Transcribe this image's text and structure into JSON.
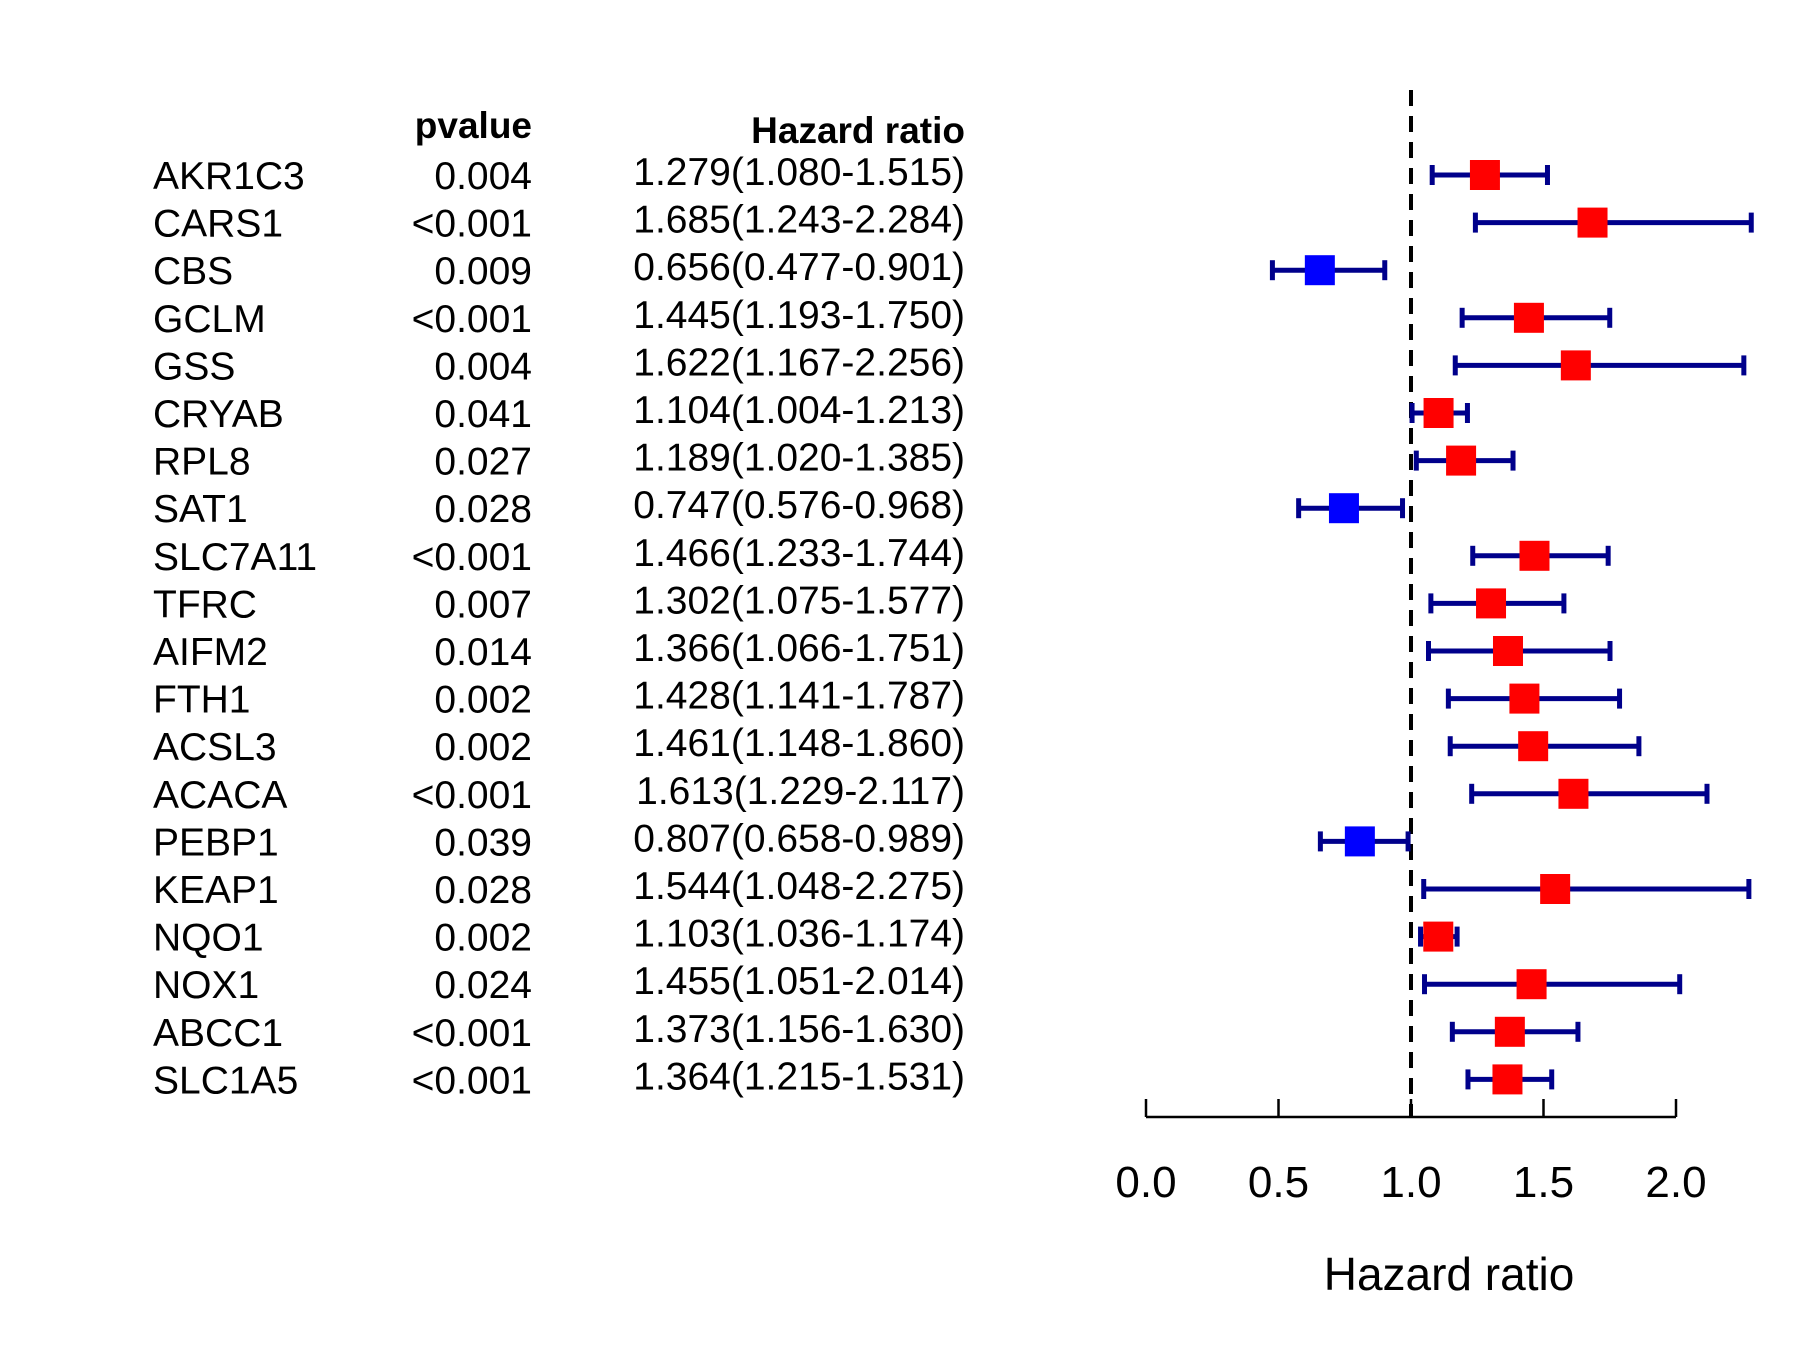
{
  "chart_data": {
    "type": "forest",
    "columns": {
      "gene": "",
      "pvalue": "pvalue",
      "hr": "Hazard ratio"
    },
    "xlabel": "Hazard ratio",
    "xlim": [
      0,
      2
    ],
    "xticks": [
      "0.0",
      "0.5",
      "1.0",
      "1.5",
      "2.0"
    ],
    "reference_line": 1,
    "colors": {
      "risk": "#ff0000",
      "protective": "#0000ff",
      "ci": "#00008b"
    },
    "rows": [
      {
        "gene": "AKR1C3",
        "pvalue": "0.004",
        "hr_text": "1.279(1.080-1.515)",
        "hr": 1.279,
        "lower": 1.08,
        "upper": 1.515
      },
      {
        "gene": "CARS1",
        "pvalue": "<0.001",
        "hr_text": "1.685(1.243-2.284)",
        "hr": 1.685,
        "lower": 1.243,
        "upper": 2.284
      },
      {
        "gene": "CBS",
        "pvalue": "0.009",
        "hr_text": "0.656(0.477-0.901)",
        "hr": 0.656,
        "lower": 0.477,
        "upper": 0.901
      },
      {
        "gene": "GCLM",
        "pvalue": "<0.001",
        "hr_text": "1.445(1.193-1.750)",
        "hr": 1.445,
        "lower": 1.193,
        "upper": 1.75
      },
      {
        "gene": "GSS",
        "pvalue": "0.004",
        "hr_text": "1.622(1.167-2.256)",
        "hr": 1.622,
        "lower": 1.167,
        "upper": 2.256
      },
      {
        "gene": "CRYAB",
        "pvalue": "0.041",
        "hr_text": "1.104(1.004-1.213)",
        "hr": 1.104,
        "lower": 1.004,
        "upper": 1.213
      },
      {
        "gene": "RPL8",
        "pvalue": "0.027",
        "hr_text": "1.189(1.020-1.385)",
        "hr": 1.189,
        "lower": 1.02,
        "upper": 1.385
      },
      {
        "gene": "SAT1",
        "pvalue": "0.028",
        "hr_text": "0.747(0.576-0.968)",
        "hr": 0.747,
        "lower": 0.576,
        "upper": 0.968
      },
      {
        "gene": "SLC7A11",
        "pvalue": "<0.001",
        "hr_text": "1.466(1.233-1.744)",
        "hr": 1.466,
        "lower": 1.233,
        "upper": 1.744
      },
      {
        "gene": "TFRC",
        "pvalue": "0.007",
        "hr_text": "1.302(1.075-1.577)",
        "hr": 1.302,
        "lower": 1.075,
        "upper": 1.577
      },
      {
        "gene": "AIFM2",
        "pvalue": "0.014",
        "hr_text": "1.366(1.066-1.751)",
        "hr": 1.366,
        "lower": 1.066,
        "upper": 1.751
      },
      {
        "gene": "FTH1",
        "pvalue": "0.002",
        "hr_text": "1.428(1.141-1.787)",
        "hr": 1.428,
        "lower": 1.141,
        "upper": 1.787
      },
      {
        "gene": "ACSL3",
        "pvalue": "0.002",
        "hr_text": "1.461(1.148-1.860)",
        "hr": 1.461,
        "lower": 1.148,
        "upper": 1.86
      },
      {
        "gene": "ACACA",
        "pvalue": "<0.001",
        "hr_text": "1.613(1.229-2.117)",
        "hr": 1.613,
        "lower": 1.229,
        "upper": 2.117
      },
      {
        "gene": "PEBP1",
        "pvalue": "0.039",
        "hr_text": "0.807(0.658-0.989)",
        "hr": 0.807,
        "lower": 0.658,
        "upper": 0.989
      },
      {
        "gene": "KEAP1",
        "pvalue": "0.028",
        "hr_text": "1.544(1.048-2.275)",
        "hr": 1.544,
        "lower": 1.048,
        "upper": 2.275
      },
      {
        "gene": "NQO1",
        "pvalue": "0.002",
        "hr_text": "1.103(1.036-1.174)",
        "hr": 1.103,
        "lower": 1.036,
        "upper": 1.174
      },
      {
        "gene": "NOX1",
        "pvalue": "0.024",
        "hr_text": "1.455(1.051-2.014)",
        "hr": 1.455,
        "lower": 1.051,
        "upper": 2.014
      },
      {
        "gene": "ABCC1",
        "pvalue": "<0.001",
        "hr_text": "1.373(1.156-1.630)",
        "hr": 1.373,
        "lower": 1.156,
        "upper": 1.63
      },
      {
        "gene": "SLC1A5",
        "pvalue": "<0.001",
        "hr_text": "1.364(1.215-1.531)",
        "hr": 1.364,
        "lower": 1.215,
        "upper": 1.531
      }
    ]
  }
}
